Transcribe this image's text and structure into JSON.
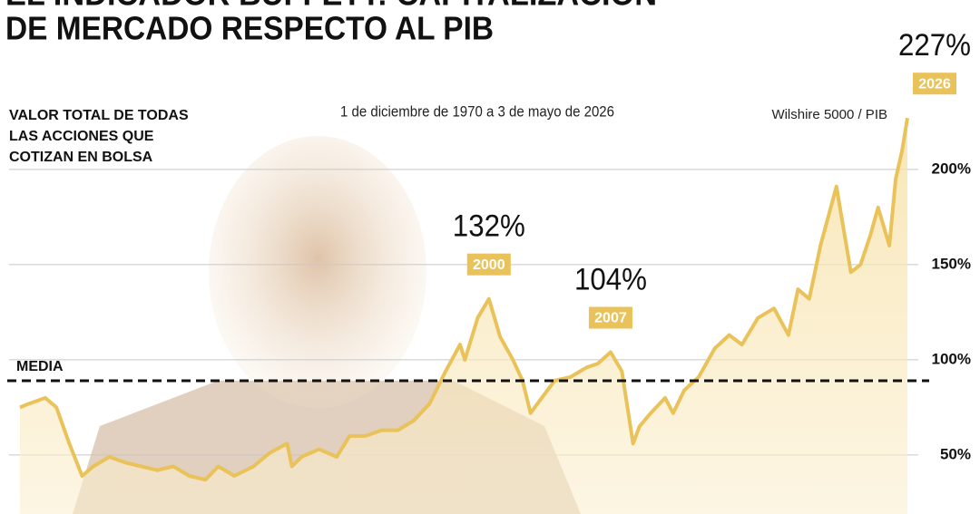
{
  "chart_data": {
    "type": "line",
    "title": [
      "EL INDICADOR BUFFETT: CAPITALIZACIÓN",
      "DE MERCADO RESPECTO AL PIB"
    ],
    "subtitle": "1 de diciembre de 1970 a 3 de mayo de 2026",
    "y_label": [
      "VALOR TOTAL DE TODAS",
      "LAS ACCIONES QUE",
      "COTIZAN EN BOLSA"
    ],
    "source_label": "Wilshire 5000 / PIB",
    "mean": {
      "label": "MEDIA",
      "value": 89
    },
    "annotations": [
      {
        "text": "132%",
        "year": "2000",
        "x": 2000.2,
        "value": 132
      },
      {
        "text": "104%",
        "year": "2007",
        "x": 2007.8,
        "value": 104
      },
      {
        "text": "227%",
        "year": "2026",
        "x": 2026.33,
        "value": 227
      }
    ],
    "x": [
      1970.92,
      1971.5,
      1972.5,
      1973.2,
      1974.0,
      1974.8,
      1975.5,
      1976.5,
      1977.5,
      1978.5,
      1979.5,
      1980.5,
      1981.5,
      1982.5,
      1983.3,
      1984.3,
      1985.5,
      1986.5,
      1987.6,
      1987.9,
      1988.5,
      1989.6,
      1990.7,
      1991.5,
      1992.5,
      1993.5,
      1994.5,
      1995.5,
      1996.5,
      1997.5,
      1998.4,
      1998.7,
      1999.5,
      2000.2,
      2000.9,
      2001.7,
      2002.3,
      2002.8,
      2003.5,
      2004.3,
      2005.3,
      2006.3,
      2007.0,
      2007.8,
      2008.5,
      2009.2,
      2009.6,
      2010.3,
      2011.2,
      2011.7,
      2012.4,
      2013.3,
      2014.3,
      2015.2,
      2016.0,
      2017.0,
      2018.0,
      2018.9,
      2019.5,
      2020.2,
      2020.9,
      2021.9,
      2022.8,
      2023.4,
      2024.0,
      2024.5,
      2025.2,
      2025.6,
      2026.0,
      2026.33
    ],
    "series": [
      {
        "name": "Wilshire 5000 / PIB",
        "color": "#e9c25a",
        "values": [
          75,
          77,
          80,
          75,
          56,
          39,
          44,
          49,
          46,
          44,
          42,
          44,
          39,
          37,
          44,
          39,
          44,
          51,
          56,
          44,
          49,
          53,
          49,
          60,
          60,
          63,
          63,
          68,
          77,
          94,
          108,
          100,
          122,
          132,
          112,
          100,
          89,
          72,
          80,
          89,
          91,
          96,
          98,
          104,
          94,
          56,
          65,
          72,
          80,
          72,
          84,
          91,
          106,
          113,
          108,
          122,
          127,
          113,
          137,
          132,
          160,
          191,
          146,
          150,
          165,
          180,
          160,
          195,
          210,
          227
        ]
      }
    ],
    "xlim": [
      1970.92,
      2026.33
    ],
    "ylim": [
      19,
      289
    ],
    "yticks": [
      {
        "value": 50,
        "label": "50%"
      },
      {
        "value": 100,
        "label": "100%"
      },
      {
        "value": 150,
        "label": "150%"
      },
      {
        "value": 200,
        "label": "200%"
      }
    ],
    "grid": true
  }
}
